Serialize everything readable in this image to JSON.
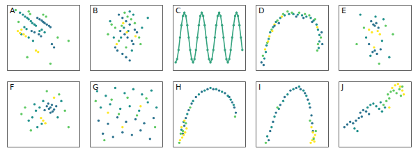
{
  "chart_data": [
    {
      "type": "scatter",
      "title": "A",
      "xlim": [
        0,
        100
      ],
      "ylim": [
        0,
        100
      ],
      "tick_labels": false,
      "series": [
        {
          "color": "#21918c",
          "x": [
            18,
            22,
            25,
            28,
            30,
            33,
            35,
            38,
            40,
            24,
            27,
            45,
            48,
            20,
            52,
            30,
            36
          ],
          "values": [
            88,
            85,
            82,
            80,
            78,
            75,
            72,
            70,
            68,
            66,
            63,
            60,
            62,
            55,
            58,
            50,
            45
          ]
        },
        {
          "color": "#2c728e",
          "x": [
            42,
            45,
            48,
            50,
            52,
            55,
            58,
            60,
            44,
            47,
            38,
            34,
            62,
            65
          ],
          "values": [
            80,
            78,
            76,
            74,
            72,
            70,
            68,
            66,
            55,
            52,
            58,
            60,
            40,
            35
          ]
        },
        {
          "color": "#fde725",
          "x": [
            15,
            18,
            20,
            23,
            26,
            40,
            43
          ],
          "values": [
            60,
            57,
            62,
            55,
            52,
            30,
            28
          ]
        },
        {
          "color": "#5ec962",
          "x": [
            12,
            16,
            30,
            32,
            50,
            54,
            70,
            85,
            28,
            60
          ],
          "values": [
            92,
            74,
            90,
            86,
            85,
            82,
            50,
            45,
            20,
            10
          ]
        }
      ]
    },
    {
      "type": "scatter",
      "title": "B",
      "xlim": [
        0,
        100
      ],
      "ylim": [
        0,
        100
      ],
      "tick_labels": false,
      "series": [
        {
          "color": "#2c728e",
          "x": [
            40,
            45,
            50,
            55,
            42,
            48,
            52,
            58,
            60,
            35,
            38,
            62,
            65,
            45,
            50,
            55
          ],
          "values": [
            85,
            80,
            75,
            70,
            60,
            55,
            50,
            45,
            40,
            35,
            30,
            62,
            58,
            25,
            20,
            15
          ]
        },
        {
          "color": "#5ec962",
          "x": [
            30,
            35,
            48,
            52,
            57,
            62,
            44,
            40,
            68,
            70,
            25,
            50
          ],
          "values": [
            70,
            65,
            88,
            82,
            78,
            72,
            68,
            45,
            50,
            40,
            55,
            35
          ]
        },
        {
          "color": "#21918c",
          "x": [
            55,
            60,
            47,
            53,
            43,
            58,
            33,
            72,
            28,
            80
          ],
          "values": [
            90,
            85,
            65,
            60,
            50,
            30,
            50,
            65,
            75,
            80
          ]
        },
        {
          "color": "#fde725",
          "x": [
            46,
            51,
            63,
            37
          ],
          "values": [
            72,
            58,
            52,
            40
          ]
        }
      ]
    },
    {
      "type": "scatter",
      "title": "C",
      "xlim": [
        0,
        100
      ],
      "ylim": [
        0,
        100
      ],
      "tick_labels": false,
      "series": [
        {
          "color": "#35a37f",
          "line_style": "solid",
          "x": [
            4,
            6,
            8,
            10,
            12,
            14,
            16,
            18,
            20,
            22,
            24,
            26,
            28,
            30,
            32,
            34,
            36,
            38,
            40,
            42,
            44,
            46,
            48,
            50,
            52,
            54,
            56,
            58,
            60,
            62,
            64,
            66,
            68,
            70,
            72,
            74,
            76,
            78,
            80,
            82,
            84,
            86,
            88,
            90,
            92,
            94,
            96
          ],
          "values": [
            12,
            17,
            31,
            50,
            69,
            83,
            88,
            83,
            69,
            50,
            31,
            17,
            12,
            17,
            31,
            50,
            69,
            83,
            88,
            83,
            69,
            50,
            31,
            17,
            12,
            17,
            31,
            50,
            69,
            83,
            88,
            83,
            69,
            50,
            31,
            17,
            12,
            17,
            31,
            50,
            69,
            83,
            88,
            83,
            69,
            50,
            31
          ]
        }
      ]
    },
    {
      "type": "scatter",
      "title": "D",
      "xlim": [
        0,
        100
      ],
      "ylim": [
        0,
        100
      ],
      "tick_labels": false,
      "series": [
        {
          "color": "#21918c",
          "x": [
            12,
            14,
            15,
            18,
            20,
            24,
            28,
            34,
            40,
            46,
            52,
            58,
            64,
            70,
            76,
            80,
            84,
            86,
            88,
            88,
            87
          ],
          "values": [
            18,
            28,
            38,
            48,
            58,
            66,
            74,
            80,
            84,
            86,
            86,
            85,
            84,
            82,
            80,
            76,
            70,
            62,
            54,
            44,
            34
          ]
        },
        {
          "color": "#5ec962",
          "x": [
            10,
            16,
            22,
            30,
            38,
            44,
            50,
            60,
            68,
            74,
            82,
            90,
            86,
            85
          ],
          "values": [
            22,
            42,
            62,
            76,
            86,
            90,
            88,
            88,
            86,
            84,
            78,
            50,
            40,
            30
          ]
        },
        {
          "color": "#fde725",
          "x": [
            13,
            17,
            19,
            23,
            26,
            36,
            85
          ],
          "values": [
            32,
            44,
            52,
            60,
            70,
            82,
            66
          ]
        },
        {
          "color": "#2c728e",
          "x": [
            8,
            11,
            26,
            32,
            56,
            66,
            78,
            91,
            92
          ],
          "values": [
            12,
            8,
            68,
            72,
            82,
            80,
            74,
            58,
            40
          ]
        }
      ]
    },
    {
      "type": "scatter",
      "title": "E",
      "xlim": [
        0,
        100
      ],
      "ylim": [
        0,
        100
      ],
      "tick_labels": false,
      "series": [
        {
          "color": "#2c728e",
          "x": [
            45,
            48,
            50,
            52,
            55,
            50,
            47,
            53,
            58,
            42
          ],
          "values": [
            75,
            70,
            68,
            72,
            65,
            30,
            28,
            25,
            32,
            40
          ]
        },
        {
          "color": "#fde725",
          "x": [
            42,
            46,
            54,
            57,
            49
          ],
          "values": [
            62,
            58,
            60,
            55,
            35
          ]
        },
        {
          "color": "#21918c",
          "x": [
            38,
            60,
            62,
            30,
            70,
            51,
            44
          ],
          "values": [
            50,
            45,
            78,
            85,
            20,
            82,
            22
          ]
        },
        {
          "color": "#5ec962",
          "x": [
            35,
            65,
            25,
            75,
            56
          ],
          "values": [
            65,
            68,
            40,
            55,
            10
          ]
        }
      ]
    },
    {
      "type": "scatter",
      "title": "F",
      "xlim": [
        0,
        100
      ],
      "ylim": [
        0,
        100
      ],
      "tick_labels": false,
      "series": [
        {
          "color": "#2c728e",
          "x": [
            55,
            58,
            60,
            62,
            65,
            57,
            63,
            60,
            52,
            68
          ],
          "values": [
            62,
            58,
            60,
            64,
            57,
            66,
            54,
            52,
            56,
            62
          ]
        },
        {
          "color": "#21918c",
          "x": [
            40,
            45,
            35,
            30,
            50,
            70,
            75,
            48,
            42,
            38
          ],
          "values": [
            55,
            60,
            45,
            40,
            70,
            45,
            70,
            35,
            30,
            65
          ]
        },
        {
          "color": "#fde725",
          "x": [
            50,
            53,
            47,
            65
          ],
          "values": [
            40,
            36,
            44,
            75
          ]
        },
        {
          "color": "#5ec962",
          "x": [
            20,
            25,
            80,
            85,
            33,
            72,
            55
          ],
          "values": [
            50,
            60,
            55,
            30,
            25,
            80,
            85
          ]
        }
      ]
    },
    {
      "type": "scatter",
      "title": "G",
      "xlim": [
        0,
        100
      ],
      "ylim": [
        0,
        100
      ],
      "tick_labels": false,
      "series": [
        {
          "color": "#21918c",
          "x": [
            10,
            22,
            35,
            48,
            60,
            72,
            85,
            15,
            28,
            42,
            55,
            68,
            80,
            92
          ],
          "values": [
            85,
            78,
            90,
            82,
            88,
            80,
            86,
            60,
            65,
            58,
            62,
            55,
            68,
            60
          ]
        },
        {
          "color": "#2c728e",
          "x": [
            12,
            25,
            38,
            50,
            63,
            75,
            88,
            18,
            32,
            45,
            58,
            70,
            83
          ],
          "values": [
            40,
            35,
            45,
            38,
            42,
            36,
            44,
            20,
            15,
            22,
            18,
            25,
            12
          ]
        },
        {
          "color": "#5ec962",
          "x": [
            8,
            30,
            52,
            78,
            40,
            65,
            90,
            20
          ],
          "values": [
            70,
            72,
            75,
            74,
            50,
            48,
            30,
            10
          ]
        },
        {
          "color": "#fde725",
          "x": [
            45,
            70,
            25
          ],
          "values": [
            30,
            62,
            52
          ]
        }
      ]
    },
    {
      "type": "scatter",
      "title": "H",
      "xlim": [
        0,
        100
      ],
      "ylim": [
        0,
        100
      ],
      "tick_labels": false,
      "series": [
        {
          "color": "#2c728e",
          "x": [
            14,
            16,
            18,
            22,
            26,
            32,
            40,
            48,
            56,
            64,
            72,
            78,
            82,
            85,
            87
          ],
          "values": [
            20,
            32,
            44,
            56,
            66,
            76,
            84,
            88,
            88,
            86,
            82,
            76,
            68,
            60,
            52
          ]
        },
        {
          "color": "#21918c",
          "x": [
            12,
            15,
            20,
            28,
            36,
            44,
            52,
            60,
            68,
            76,
            80,
            84
          ],
          "values": [
            26,
            38,
            50,
            70,
            80,
            86,
            90,
            88,
            84,
            78,
            72,
            64
          ]
        },
        {
          "color": "#fde725",
          "x": [
            10,
            13,
            15,
            17,
            19,
            12,
            16
          ],
          "values": [
            10,
            14,
            18,
            22,
            28,
            30,
            40
          ]
        },
        {
          "color": "#5ec962",
          "x": [
            9,
            14,
            18,
            11,
            24,
            86
          ],
          "values": [
            6,
            24,
            36,
            20,
            60,
            46
          ]
        }
      ]
    },
    {
      "type": "scatter",
      "title": "I",
      "xlim": [
        0,
        100
      ],
      "ylim": [
        0,
        100
      ],
      "tick_labels": false,
      "series": [
        {
          "color": "#2c728e",
          "x": [
            18,
            20,
            24,
            28,
            34,
            40,
            48,
            56,
            62,
            68,
            72,
            75,
            77,
            78,
            79
          ],
          "values": [
            10,
            24,
            38,
            52,
            64,
            76,
            86,
            90,
            88,
            82,
            72,
            60,
            48,
            36,
            24
          ]
        },
        {
          "color": "#21918c",
          "x": [
            16,
            22,
            26,
            32,
            38,
            44,
            52,
            60,
            66,
            70,
            74
          ],
          "values": [
            16,
            30,
            46,
            58,
            70,
            80,
            88,
            92,
            86,
            78,
            66
          ]
        },
        {
          "color": "#fde725",
          "x": [
            76,
            78,
            80,
            82,
            79,
            81,
            77
          ],
          "values": [
            6,
            10,
            14,
            18,
            22,
            8,
            30
          ]
        },
        {
          "color": "#5ec962",
          "x": [
            14,
            80,
            83,
            75,
            30
          ],
          "values": [
            6,
            12,
            24,
            40,
            60
          ]
        }
      ]
    },
    {
      "type": "scatter",
      "title": "J",
      "xlim": [
        0,
        100
      ],
      "ylim": [
        0,
        100
      ],
      "tick_labels": false,
      "series": [
        {
          "color": "#2c728e",
          "x": [
            8,
            12,
            16,
            20,
            24,
            28,
            32,
            30,
            34,
            38,
            42
          ],
          "values": [
            30,
            34,
            38,
            36,
            40,
            44,
            46,
            52,
            56,
            54,
            50
          ]
        },
        {
          "color": "#21918c",
          "x": [
            22,
            26,
            40,
            44,
            48,
            52,
            56,
            60,
            64,
            58
          ],
          "values": [
            28,
            24,
            60,
            64,
            66,
            62,
            58,
            54,
            60,
            68
          ]
        },
        {
          "color": "#5ec962",
          "x": [
            62,
            66,
            70,
            68,
            72,
            76,
            80,
            84,
            88,
            86
          ],
          "values": [
            64,
            70,
            74,
            80,
            84,
            86,
            82,
            88,
            92,
            78
          ]
        },
        {
          "color": "#fde725",
          "x": [
            74,
            78,
            82,
            85,
            88,
            90,
            70
          ],
          "values": [
            90,
            94,
            96,
            92,
            86,
            80,
            60
          ]
        }
      ]
    }
  ]
}
